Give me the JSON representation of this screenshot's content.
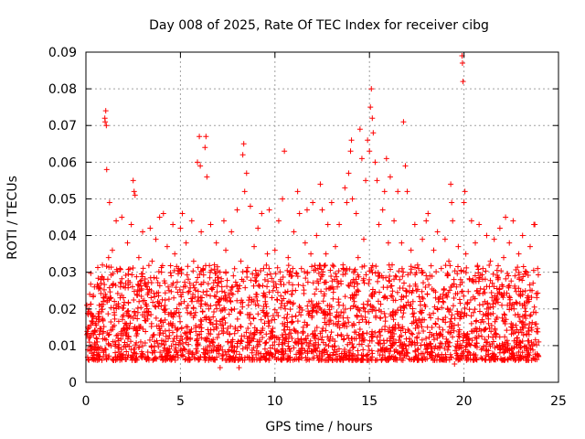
{
  "chart_data": {
    "type": "scatter",
    "title": "Day 008 of 2025, Rate Of TEC Index for receiver cibg",
    "xlabel": "GPS time / hours",
    "ylabel": "ROTI / TECUs",
    "xlim": [
      0,
      25
    ],
    "ylim": [
      0,
      0.09
    ],
    "x_ticks": [
      0,
      5,
      10,
      15,
      20,
      25
    ],
    "x_tick_labels": [
      "0",
      "5",
      "10",
      "15",
      "20",
      "25"
    ],
    "y_ticks": [
      0,
      0.01,
      0.02,
      0.03,
      0.04,
      0.05,
      0.06,
      0.07,
      0.08,
      0.09
    ],
    "y_tick_labels": [
      "0",
      "0.01",
      "0.02",
      "0.03",
      "0.04",
      "0.05",
      "0.06",
      "0.07",
      "0.08",
      "0.09"
    ],
    "grid": true,
    "marker": "plus",
    "series": [
      {
        "color": "#ff0000",
        "points": [
          [
            0.05,
            0.021
          ],
          [
            0.1,
            0.015
          ],
          [
            0.15,
            0.012
          ],
          [
            0.2,
            0.024
          ],
          [
            0.3,
            0.009
          ],
          [
            0.35,
            0.018
          ],
          [
            0.4,
            0.013
          ],
          [
            0.45,
            0.026
          ],
          [
            0.5,
            0.016
          ],
          [
            0.6,
            0.011
          ],
          [
            0.7,
            0.021
          ],
          [
            0.8,
            0.027
          ],
          [
            0.9,
            0.017
          ],
          [
            1.0,
            0.072
          ],
          [
            1.02,
            0.071
          ],
          [
            1.05,
            0.074
          ],
          [
            1.08,
            0.07
          ],
          [
            1.1,
            0.058
          ],
          [
            1.2,
            0.034
          ],
          [
            1.25,
            0.049
          ],
          [
            1.3,
            0.023
          ],
          [
            1.4,
            0.036
          ],
          [
            1.5,
            0.019
          ],
          [
            1.6,
            0.044
          ],
          [
            1.7,
            0.012
          ],
          [
            1.8,
            0.031
          ],
          [
            1.9,
            0.045
          ],
          [
            2.0,
            0.021
          ],
          [
            2.1,
            0.027
          ],
          [
            2.2,
            0.038
          ],
          [
            2.3,
            0.015
          ],
          [
            2.4,
            0.043
          ],
          [
            2.5,
            0.055
          ],
          [
            2.55,
            0.052
          ],
          [
            2.6,
            0.051
          ],
          [
            2.7,
            0.024
          ],
          [
            2.8,
            0.034
          ],
          [
            2.9,
            0.011
          ],
          [
            3.0,
            0.041
          ],
          [
            3.1,
            0.027
          ],
          [
            3.2,
            0.019
          ],
          [
            3.4,
            0.042
          ],
          [
            3.5,
            0.033
          ],
          [
            3.6,
            0.013
          ],
          [
            3.7,
            0.039
          ],
          [
            3.8,
            0.022
          ],
          [
            3.9,
            0.045
          ],
          [
            4.0,
            0.03
          ],
          [
            4.1,
            0.046
          ],
          [
            4.2,
            0.014
          ],
          [
            4.3,
            0.037
          ],
          [
            4.4,
            0.025
          ],
          [
            4.5,
            0.019
          ],
          [
            4.6,
            0.043
          ],
          [
            4.7,
            0.035
          ],
          [
            4.8,
            0.012
          ],
          [
            4.9,
            0.031
          ],
          [
            5.0,
            0.042
          ],
          [
            5.1,
            0.046
          ],
          [
            5.2,
            0.022
          ],
          [
            5.3,
            0.038
          ],
          [
            5.4,
            0.012
          ],
          [
            5.5,
            0.027
          ],
          [
            5.6,
            0.044
          ],
          [
            5.7,
            0.033
          ],
          [
            5.8,
            0.019
          ],
          [
            5.9,
            0.06
          ],
          [
            6.0,
            0.067
          ],
          [
            6.05,
            0.059
          ],
          [
            6.1,
            0.041
          ],
          [
            6.2,
            0.031
          ],
          [
            6.3,
            0.064
          ],
          [
            6.35,
            0.067
          ],
          [
            6.4,
            0.056
          ],
          [
            6.5,
            0.02
          ],
          [
            6.6,
            0.043
          ],
          [
            6.7,
            0.011
          ],
          [
            6.8,
            0.032
          ],
          [
            6.9,
            0.038
          ],
          [
            7.0,
            0.027
          ],
          [
            7.1,
            0.004
          ],
          [
            7.2,
            0.014
          ],
          [
            7.3,
            0.044
          ],
          [
            7.4,
            0.036
          ],
          [
            7.5,
            0.011
          ],
          [
            7.6,
            0.023
          ],
          [
            7.7,
            0.041
          ],
          [
            7.8,
            0.029
          ],
          [
            7.9,
            0.015
          ],
          [
            8.0,
            0.047
          ],
          [
            8.1,
            0.004
          ],
          [
            8.2,
            0.033
          ],
          [
            8.3,
            0.062
          ],
          [
            8.35,
            0.065
          ],
          [
            8.4,
            0.052
          ],
          [
            8.5,
            0.057
          ],
          [
            8.6,
            0.021
          ],
          [
            8.7,
            0.048
          ],
          [
            8.8,
            0.012
          ],
          [
            8.9,
            0.037
          ],
          [
            9.0,
            0.024
          ],
          [
            9.1,
            0.042
          ],
          [
            9.2,
            0.006
          ],
          [
            9.3,
            0.046
          ],
          [
            9.4,
            0.031
          ],
          [
            9.5,
            0.018
          ],
          [
            9.6,
            0.035
          ],
          [
            9.7,
            0.047
          ],
          [
            9.8,
            0.014
          ],
          [
            9.9,
            0.025
          ],
          [
            10.0,
            0.036
          ],
          [
            10.1,
            0.019
          ],
          [
            10.2,
            0.044
          ],
          [
            10.3,
            0.028
          ],
          [
            10.4,
            0.05
          ],
          [
            10.5,
            0.063
          ],
          [
            10.6,
            0.012
          ],
          [
            10.7,
            0.034
          ],
          [
            10.8,
            0.006
          ],
          [
            10.9,
            0.024
          ],
          [
            11.0,
            0.041
          ],
          [
            11.1,
            0.018
          ],
          [
            11.2,
            0.052
          ],
          [
            11.3,
            0.046
          ],
          [
            11.4,
            0.031
          ],
          [
            11.5,
            0.015
          ],
          [
            11.6,
            0.038
          ],
          [
            11.7,
            0.047
          ],
          [
            11.8,
            0.022
          ],
          [
            11.9,
            0.035
          ],
          [
            12.0,
            0.049
          ],
          [
            12.1,
            0.012
          ],
          [
            12.2,
            0.04
          ],
          [
            12.3,
            0.027
          ],
          [
            12.4,
            0.054
          ],
          [
            12.5,
            0.047
          ],
          [
            12.6,
            0.019
          ],
          [
            12.7,
            0.035
          ],
          [
            12.8,
            0.043
          ],
          [
            12.9,
            0.021
          ],
          [
            13.0,
            0.049
          ],
          [
            13.1,
            0.016
          ],
          [
            13.2,
            0.037
          ],
          [
            13.3,
            0.026
          ],
          [
            13.4,
            0.043
          ],
          [
            13.5,
            0.013
          ],
          [
            13.6,
            0.032
          ],
          [
            13.7,
            0.053
          ],
          [
            13.8,
            0.049
          ],
          [
            13.9,
            0.057
          ],
          [
            14.0,
            0.063
          ],
          [
            14.05,
            0.066
          ],
          [
            14.1,
            0.05
          ],
          [
            14.2,
            0.022
          ],
          [
            14.3,
            0.046
          ],
          [
            14.4,
            0.034
          ],
          [
            14.5,
            0.069
          ],
          [
            14.6,
            0.061
          ],
          [
            14.7,
            0.039
          ],
          [
            14.8,
            0.055
          ],
          [
            14.9,
            0.066
          ],
          [
            15.0,
            0.063
          ],
          [
            15.05,
            0.075
          ],
          [
            15.1,
            0.08
          ],
          [
            15.15,
            0.072
          ],
          [
            15.2,
            0.068
          ],
          [
            15.3,
            0.06
          ],
          [
            15.4,
            0.055
          ],
          [
            15.5,
            0.043
          ],
          [
            15.6,
            0.009
          ],
          [
            15.7,
            0.047
          ],
          [
            15.8,
            0.052
          ],
          [
            15.9,
            0.061
          ],
          [
            16.0,
            0.038
          ],
          [
            16.1,
            0.056
          ],
          [
            16.2,
            0.032
          ],
          [
            16.3,
            0.044
          ],
          [
            16.4,
            0.019
          ],
          [
            16.5,
            0.052
          ],
          [
            16.6,
            0.028
          ],
          [
            16.7,
            0.038
          ],
          [
            16.8,
            0.071
          ],
          [
            16.9,
            0.059
          ],
          [
            17.0,
            0.052
          ],
          [
            17.1,
            0.014
          ],
          [
            17.2,
            0.036
          ],
          [
            17.3,
            0.025
          ],
          [
            17.4,
            0.043
          ],
          [
            17.5,
            0.012
          ],
          [
            17.6,
            0.031
          ],
          [
            17.7,
            0.021
          ],
          [
            17.8,
            0.039
          ],
          [
            17.9,
            0.017
          ],
          [
            18.0,
            0.044
          ],
          [
            18.1,
            0.046
          ],
          [
            18.2,
            0.029
          ],
          [
            18.3,
            0.013
          ],
          [
            18.4,
            0.036
          ],
          [
            18.5,
            0.023
          ],
          [
            18.6,
            0.041
          ],
          [
            18.7,
            0.015
          ],
          [
            18.8,
            0.031
          ],
          [
            18.9,
            0.024
          ],
          [
            19.0,
            0.039
          ],
          [
            19.1,
            0.011
          ],
          [
            19.2,
            0.033
          ],
          [
            19.3,
            0.054
          ],
          [
            19.35,
            0.049
          ],
          [
            19.4,
            0.044
          ],
          [
            19.5,
            0.005
          ],
          [
            19.6,
            0.026
          ],
          [
            19.7,
            0.037
          ],
          [
            19.8,
            0.018
          ],
          [
            19.9,
            0.089
          ],
          [
            19.92,
            0.087
          ],
          [
            19.95,
            0.082
          ],
          [
            20.0,
            0.049
          ],
          [
            20.05,
            0.052
          ],
          [
            20.1,
            0.035
          ],
          [
            20.2,
            0.012
          ],
          [
            20.3,
            0.028
          ],
          [
            20.4,
            0.044
          ],
          [
            20.5,
            0.019
          ],
          [
            20.6,
            0.038
          ],
          [
            20.7,
            0.025
          ],
          [
            20.8,
            0.043
          ],
          [
            20.9,
            0.014
          ],
          [
            21.0,
            0.031
          ],
          [
            21.1,
            0.022
          ],
          [
            21.2,
            0.04
          ],
          [
            21.3,
            0.016
          ],
          [
            21.4,
            0.033
          ],
          [
            21.5,
            0.027
          ],
          [
            21.6,
            0.039
          ],
          [
            21.7,
            0.013
          ],
          [
            21.8,
            0.028
          ],
          [
            21.9,
            0.042
          ],
          [
            22.0,
            0.006
          ],
          [
            22.1,
            0.034
          ],
          [
            22.2,
            0.045
          ],
          [
            22.3,
            0.021
          ],
          [
            22.4,
            0.038
          ],
          [
            22.5,
            0.016
          ],
          [
            22.6,
            0.044
          ],
          [
            22.7,
            0.029
          ],
          [
            22.8,
            0.012
          ],
          [
            22.9,
            0.035
          ],
          [
            23.0,
            0.024
          ],
          [
            23.1,
            0.04
          ],
          [
            23.2,
            0.018
          ],
          [
            23.3,
            0.03
          ],
          [
            23.4,
            0.014
          ],
          [
            23.5,
            0.037
          ],
          [
            23.6,
            0.025
          ],
          [
            23.7,
            0.043
          ],
          [
            23.75,
            0.043
          ],
          [
            23.8,
            0.019
          ],
          [
            23.9,
            0.031
          ],
          [
            23.95,
            0.011
          ]
        ]
      }
    ]
  }
}
